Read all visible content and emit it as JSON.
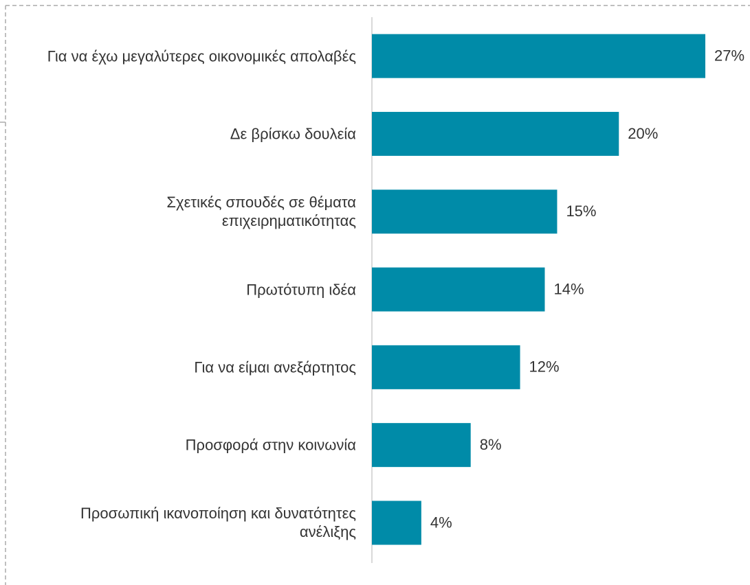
{
  "chart_data": {
    "type": "bar",
    "orientation": "horizontal",
    "color": "#008ba8",
    "categories": [
      "Για να έχω μεγαλύτερες οικονομικές απολαβές",
      "Δε βρίσκω δουλεία",
      "Σχετικές σπουδές σε θέματα\nεπιχειρηματικότητας",
      "Πρωτότυπη ιδέα",
      "Για να είμαι ανεξάρτητος",
      "Προσφορά στην κοινωνία",
      "Προσωπική ικανοποίηση και δυνατότητες\nανέλιξης"
    ],
    "values": [
      27,
      20,
      15,
      14,
      12,
      8,
      4
    ],
    "value_labels": [
      "27%",
      "20%",
      "15%",
      "14%",
      "12%",
      "8%",
      "4%"
    ]
  }
}
